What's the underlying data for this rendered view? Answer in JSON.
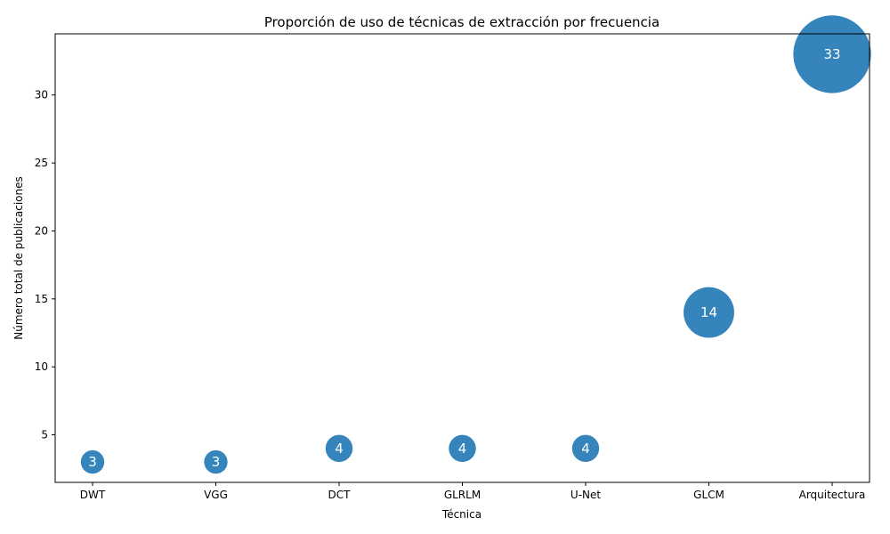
{
  "chart_data": {
    "type": "scatter",
    "title": "Proporción de uso de técnicas de extracción por frecuencia",
    "xlabel": "Técnica",
    "ylabel": "Número total de publicaciones",
    "categories": [
      "DWT",
      "VGG",
      "DCT",
      "GLRLM",
      "U-Net",
      "GLCM",
      "Arquitectura"
    ],
    "values": [
      3,
      3,
      4,
      4,
      4,
      14,
      33
    ],
    "data_labels": [
      "3",
      "3",
      "4",
      "4",
      "4",
      "14",
      "33"
    ],
    "ylim": [
      1.5,
      34.5
    ],
    "yticks": [
      5,
      10,
      15,
      20,
      25,
      30
    ],
    "ytick_labels": [
      "5",
      "10",
      "15",
      "20",
      "25",
      "30"
    ],
    "bubble_size": "proportional to value",
    "bubble_color": "#1f77b4",
    "grid": false,
    "legend": "none"
  }
}
